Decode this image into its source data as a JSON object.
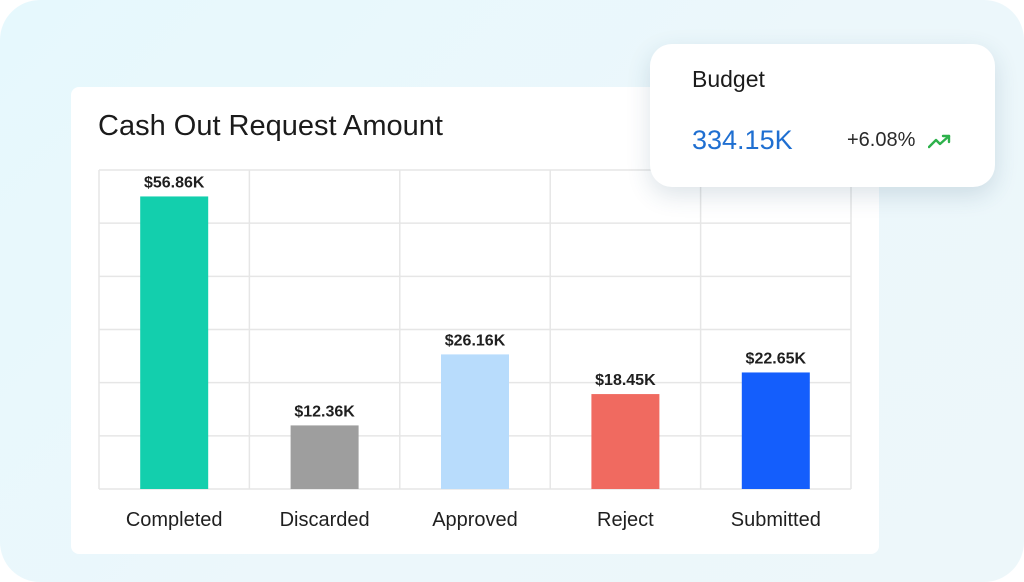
{
  "chart_data": {
    "type": "bar",
    "title": "Cash Out Request Amount",
    "xlabel": "",
    "ylabel": "",
    "categories": [
      "Completed",
      "Discarded",
      "Approved",
      "Reject",
      "Submitted"
    ],
    "values": [
      56.86,
      12.36,
      26.16,
      18.45,
      22.65
    ],
    "data_labels": [
      "$56.86K",
      "$12.36K",
      "$26.16K",
      "$18.45K",
      "$22.65K"
    ],
    "unit": "$K",
    "ylim": [
      0,
      62
    ],
    "grid": true,
    "legend": "none",
    "colors": [
      "#13cfad",
      "#9e9e9e",
      "#b8dcfc",
      "#f06a60",
      "#145efc"
    ]
  },
  "budget": {
    "label": "Budget",
    "value": "334.15K",
    "change": "+6.08%",
    "trend_icon": "trending-up-icon",
    "value_color": "#1f6fd1",
    "trend_color": "#2db14b"
  }
}
